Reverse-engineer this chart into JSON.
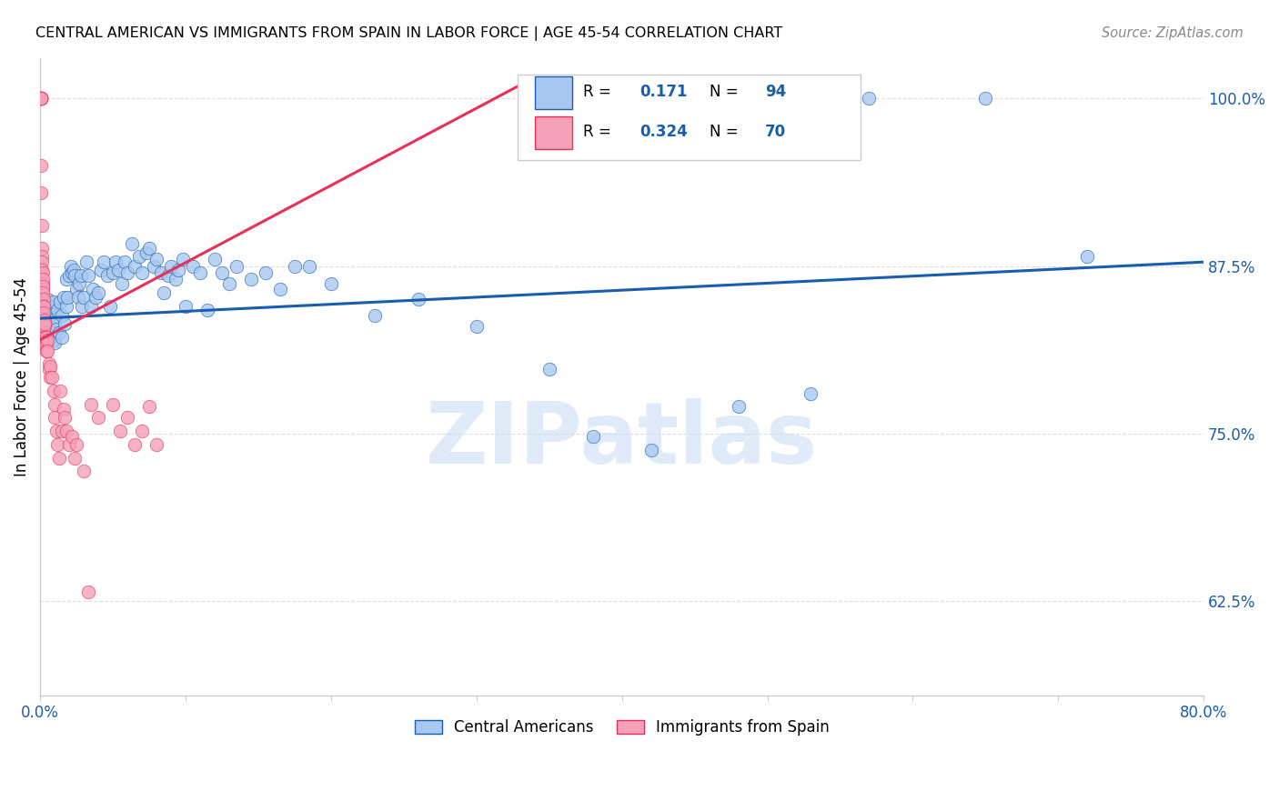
{
  "title": "CENTRAL AMERICAN VS IMMIGRANTS FROM SPAIN IN LABOR FORCE | AGE 45-54 CORRELATION CHART",
  "source": "Source: ZipAtlas.com",
  "ylabel": "In Labor Force | Age 45-54",
  "xlim": [
    0.0,
    0.8
  ],
  "ylim": [
    0.555,
    1.03
  ],
  "yticks": [
    0.625,
    0.75,
    0.875,
    1.0
  ],
  "ytick_labels": [
    "62.5%",
    "75.0%",
    "87.5%",
    "100.0%"
  ],
  "xticks": [
    0.0,
    0.1,
    0.2,
    0.3,
    0.4,
    0.5,
    0.6,
    0.7,
    0.8
  ],
  "xtick_labels": [
    "0.0%",
    "",
    "",
    "",
    "",
    "",
    "",
    "",
    "80.0%"
  ],
  "blue_R": 0.171,
  "blue_N": 94,
  "pink_R": 0.324,
  "pink_N": 70,
  "blue_color": "#A8C8F0",
  "pink_color": "#F4A0B8",
  "blue_line_color": "#1A5DAD",
  "pink_line_color": "#E8305A",
  "blue_scatter": [
    [
      0.001,
      0.85
    ],
    [
      0.002,
      0.84
    ],
    [
      0.003,
      0.845
    ],
    [
      0.003,
      0.83
    ],
    [
      0.004,
      0.835
    ],
    [
      0.005,
      0.85
    ],
    [
      0.005,
      0.828
    ],
    [
      0.006,
      0.842
    ],
    [
      0.006,
      0.832
    ],
    [
      0.007,
      0.838
    ],
    [
      0.007,
      0.822
    ],
    [
      0.008,
      0.845
    ],
    [
      0.008,
      0.825
    ],
    [
      0.009,
      0.848
    ],
    [
      0.009,
      0.82
    ],
    [
      0.01,
      0.835
    ],
    [
      0.01,
      0.818
    ],
    [
      0.011,
      0.828
    ],
    [
      0.012,
      0.842
    ],
    [
      0.013,
      0.825
    ],
    [
      0.014,
      0.848
    ],
    [
      0.015,
      0.838
    ],
    [
      0.015,
      0.822
    ],
    [
      0.016,
      0.852
    ],
    [
      0.017,
      0.832
    ],
    [
      0.018,
      0.865
    ],
    [
      0.018,
      0.845
    ],
    [
      0.019,
      0.852
    ],
    [
      0.02,
      0.868
    ],
    [
      0.021,
      0.875
    ],
    [
      0.022,
      0.87
    ],
    [
      0.023,
      0.872
    ],
    [
      0.024,
      0.868
    ],
    [
      0.025,
      0.858
    ],
    [
      0.026,
      0.852
    ],
    [
      0.027,
      0.862
    ],
    [
      0.028,
      0.868
    ],
    [
      0.029,
      0.845
    ],
    [
      0.03,
      0.852
    ],
    [
      0.032,
      0.878
    ],
    [
      0.033,
      0.868
    ],
    [
      0.035,
      0.845
    ],
    [
      0.036,
      0.858
    ],
    [
      0.038,
      0.852
    ],
    [
      0.04,
      0.855
    ],
    [
      0.042,
      0.872
    ],
    [
      0.044,
      0.878
    ],
    [
      0.046,
      0.868
    ],
    [
      0.048,
      0.845
    ],
    [
      0.05,
      0.87
    ],
    [
      0.052,
      0.878
    ],
    [
      0.054,
      0.872
    ],
    [
      0.056,
      0.862
    ],
    [
      0.058,
      0.878
    ],
    [
      0.06,
      0.87
    ],
    [
      0.063,
      0.892
    ],
    [
      0.065,
      0.875
    ],
    [
      0.068,
      0.882
    ],
    [
      0.07,
      0.87
    ],
    [
      0.073,
      0.885
    ],
    [
      0.075,
      0.888
    ],
    [
      0.078,
      0.875
    ],
    [
      0.08,
      0.88
    ],
    [
      0.083,
      0.87
    ],
    [
      0.085,
      0.855
    ],
    [
      0.088,
      0.868
    ],
    [
      0.09,
      0.875
    ],
    [
      0.093,
      0.865
    ],
    [
      0.095,
      0.872
    ],
    [
      0.098,
      0.88
    ],
    [
      0.1,
      0.845
    ],
    [
      0.105,
      0.875
    ],
    [
      0.11,
      0.87
    ],
    [
      0.115,
      0.842
    ],
    [
      0.12,
      0.88
    ],
    [
      0.125,
      0.87
    ],
    [
      0.13,
      0.862
    ],
    [
      0.135,
      0.875
    ],
    [
      0.145,
      0.865
    ],
    [
      0.155,
      0.87
    ],
    [
      0.165,
      0.858
    ],
    [
      0.175,
      0.875
    ],
    [
      0.185,
      0.875
    ],
    [
      0.2,
      0.862
    ],
    [
      0.23,
      0.838
    ],
    [
      0.26,
      0.85
    ],
    [
      0.3,
      0.83
    ],
    [
      0.35,
      0.798
    ],
    [
      0.38,
      0.748
    ],
    [
      0.42,
      0.738
    ],
    [
      0.48,
      0.77
    ],
    [
      0.53,
      0.78
    ],
    [
      0.57,
      1.0
    ],
    [
      0.65,
      1.0
    ],
    [
      0.72,
      0.882
    ]
  ],
  "pink_scatter": [
    [
      0.0003,
      1.0
    ],
    [
      0.0004,
      1.0
    ],
    [
      0.0004,
      1.0
    ],
    [
      0.0005,
      1.0
    ],
    [
      0.0005,
      1.0
    ],
    [
      0.0005,
      1.0
    ],
    [
      0.0005,
      1.0
    ],
    [
      0.0005,
      1.0
    ],
    [
      0.0006,
      1.0
    ],
    [
      0.0006,
      1.0
    ],
    [
      0.0007,
      0.95
    ],
    [
      0.0008,
      0.93
    ],
    [
      0.001,
      0.905
    ],
    [
      0.001,
      0.888
    ],
    [
      0.001,
      0.882
    ],
    [
      0.0012,
      0.878
    ],
    [
      0.0013,
      0.872
    ],
    [
      0.0015,
      0.87
    ],
    [
      0.0015,
      0.862
    ],
    [
      0.0016,
      0.865
    ],
    [
      0.0018,
      0.858
    ],
    [
      0.002,
      0.86
    ],
    [
      0.002,
      0.855
    ],
    [
      0.0022,
      0.85
    ],
    [
      0.0022,
      0.845
    ],
    [
      0.0024,
      0.845
    ],
    [
      0.0025,
      0.84
    ],
    [
      0.0025,
      0.832
    ],
    [
      0.0026,
      0.822
    ],
    [
      0.0028,
      0.835
    ],
    [
      0.0028,
      0.83
    ],
    [
      0.003,
      0.832
    ],
    [
      0.003,
      0.822
    ],
    [
      0.003,
      0.818
    ],
    [
      0.004,
      0.822
    ],
    [
      0.004,
      0.818
    ],
    [
      0.004,
      0.812
    ],
    [
      0.005,
      0.82
    ],
    [
      0.005,
      0.812
    ],
    [
      0.006,
      0.802
    ],
    [
      0.006,
      0.798
    ],
    [
      0.007,
      0.8
    ],
    [
      0.007,
      0.792
    ],
    [
      0.008,
      0.792
    ],
    [
      0.009,
      0.782
    ],
    [
      0.01,
      0.772
    ],
    [
      0.01,
      0.762
    ],
    [
      0.011,
      0.752
    ],
    [
      0.012,
      0.742
    ],
    [
      0.013,
      0.732
    ],
    [
      0.014,
      0.782
    ],
    [
      0.015,
      0.752
    ],
    [
      0.016,
      0.768
    ],
    [
      0.017,
      0.762
    ],
    [
      0.018,
      0.752
    ],
    [
      0.02,
      0.742
    ],
    [
      0.022,
      0.748
    ],
    [
      0.024,
      0.732
    ],
    [
      0.025,
      0.742
    ],
    [
      0.03,
      0.722
    ],
    [
      0.033,
      0.632
    ],
    [
      0.035,
      0.772
    ],
    [
      0.04,
      0.762
    ],
    [
      0.05,
      0.772
    ],
    [
      0.055,
      0.752
    ],
    [
      0.06,
      0.762
    ],
    [
      0.065,
      0.742
    ],
    [
      0.07,
      0.752
    ],
    [
      0.075,
      0.77
    ],
    [
      0.08,
      0.742
    ]
  ],
  "watermark": "ZIPatlas",
  "legend_labels": [
    "Central Americans",
    "Immigrants from Spain"
  ],
  "background_color": "#FFFFFF",
  "grid_color": "#DDDDDD"
}
